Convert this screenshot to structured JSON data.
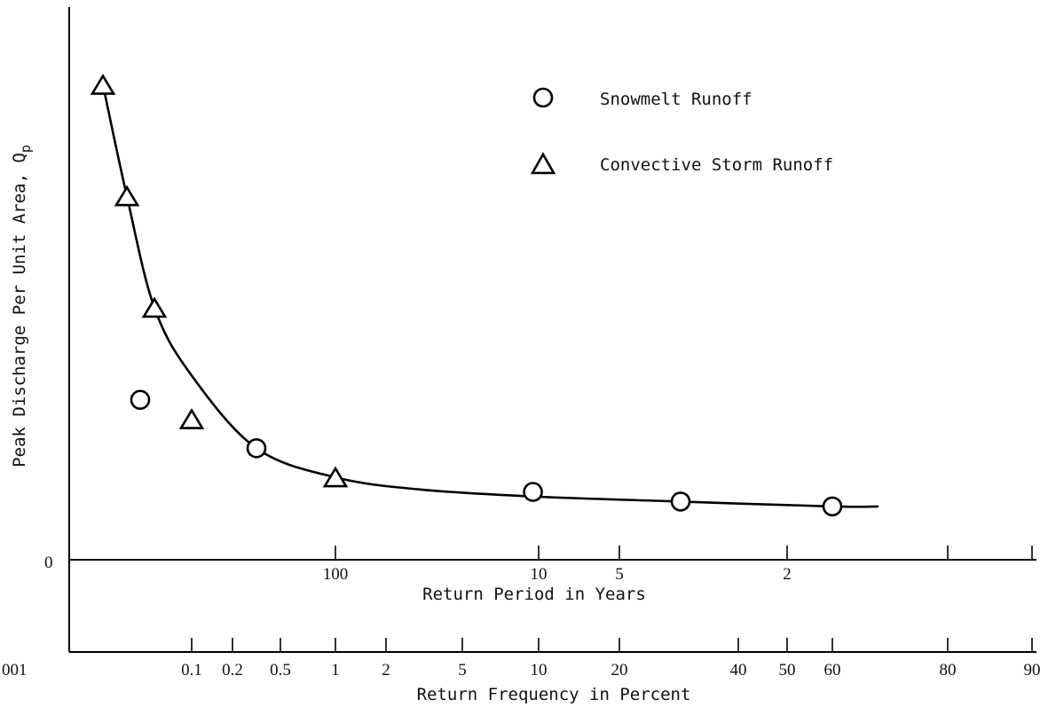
{
  "chart_data": {
    "type": "scatter",
    "ylabel": "Peak Discharge Per Unit Area, Q",
    "ylabel_subscript": "p",
    "y_zero_label": "0",
    "x_top_axis": {
      "label": "Return Period in Years",
      "ticks": [
        "100",
        "10",
        "5",
        "2"
      ]
    },
    "x_bottom_axis": {
      "label": "Return Frequency in Percent",
      "scale": "probability",
      "ticks": [
        "001",
        "0.1",
        "0.2",
        "0.5",
        "1",
        "2",
        "5",
        "10",
        "20",
        "40",
        "50",
        "60",
        "80",
        "90"
      ]
    },
    "legend": {
      "placement": "top-right",
      "entries": [
        {
          "symbol": "circle",
          "label": "Snowmelt Runoff"
        },
        {
          "symbol": "triangle",
          "label": "Convective Storm Runoff"
        }
      ]
    },
    "series": [
      {
        "name": "Snowmelt Runoff",
        "marker": "circle",
        "points": [
          {
            "x": 0.04,
            "y": 0.33
          },
          {
            "x": 0.35,
            "y": 0.23
          },
          {
            "x": 9.5,
            "y": 0.14
          },
          {
            "x": 30,
            "y": 0.12
          },
          {
            "x": 60,
            "y": 0.11
          }
        ]
      },
      {
        "name": "Convective Storm Runoff",
        "marker": "triangle",
        "points": [
          {
            "x": 0.015,
            "y": 0.98
          },
          {
            "x": 0.025,
            "y": 0.75
          },
          {
            "x": 0.05,
            "y": 0.52
          },
          {
            "x": 0.1,
            "y": 0.29
          },
          {
            "x": 1,
            "y": 0.17
          }
        ]
      },
      {
        "name": "fitted curve",
        "marker": "line",
        "points": [
          {
            "x": 0.015,
            "y": 0.98
          },
          {
            "x": 0.025,
            "y": 0.75
          },
          {
            "x": 0.05,
            "y": 0.52
          },
          {
            "x": 0.1,
            "y": 0.38
          },
          {
            "x": 0.35,
            "y": 0.23
          },
          {
            "x": 1,
            "y": 0.17
          },
          {
            "x": 3,
            "y": 0.145
          },
          {
            "x": 10,
            "y": 0.13
          },
          {
            "x": 30,
            "y": 0.12
          },
          {
            "x": 60,
            "y": 0.11
          },
          {
            "x": 75,
            "y": 0.11
          }
        ]
      }
    ],
    "ylim": [
      0,
      1.1
    ],
    "grid": false
  }
}
